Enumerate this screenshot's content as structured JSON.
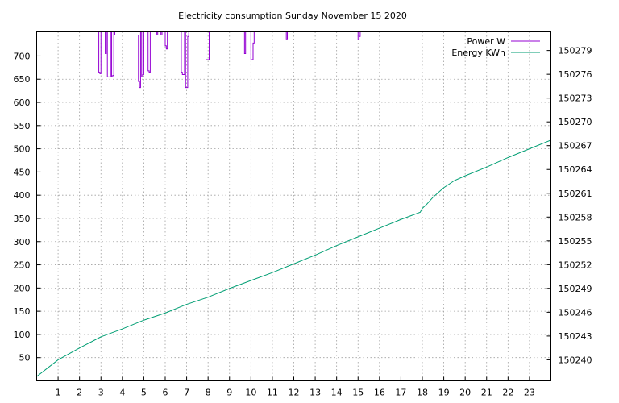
{
  "chart_data": {
    "type": "line",
    "title": "Electricity consumption Sunday November 15 2020",
    "xlabel": "",
    "ylabel": "",
    "y2label": "",
    "xlim": [
      0,
      24
    ],
    "ylim": [
      0,
      752
    ],
    "y2lim": [
      150237.35,
      150281.35
    ],
    "xticks": [
      1,
      2,
      3,
      4,
      5,
      6,
      7,
      8,
      9,
      10,
      11,
      12,
      13,
      14,
      15,
      16,
      17,
      18,
      19,
      20,
      21,
      22,
      23
    ],
    "yticks": [
      50,
      100,
      150,
      200,
      250,
      300,
      350,
      400,
      450,
      500,
      550,
      600,
      650,
      700
    ],
    "y2ticks": [
      150240,
      150243,
      150246,
      150249,
      150252,
      150255,
      150258,
      150261,
      150264,
      150267,
      150270,
      150273,
      150276,
      150279
    ],
    "grid": true,
    "legend_position": "top-right",
    "series": [
      {
        "name": "Power W",
        "axis": "y",
        "color": "#9400d3",
        "x": [
          2.9,
          2.9,
          2.95,
          2.95,
          3.0,
          3.0,
          3.2,
          3.2,
          3.25,
          3.25,
          3.3,
          3.3,
          3.45,
          3.45,
          3.5,
          3.5,
          3.55,
          3.55,
          3.6,
          3.6,
          3.65,
          3.65,
          4.75,
          4.75,
          4.8,
          4.8,
          4.85,
          4.85,
          4.9,
          4.9,
          4.95,
          4.95,
          5.0,
          5.0,
          5.2,
          5.2,
          5.25,
          5.25,
          5.3,
          5.3,
          5.6,
          5.6,
          5.65,
          5.65,
          5.8,
          5.8,
          5.85,
          5.85,
          6.0,
          6.0,
          6.05,
          6.05,
          6.1,
          6.1,
          6.15,
          6.15,
          6.75,
          6.75,
          6.8,
          6.8,
          6.9,
          6.9,
          6.95,
          6.95,
          7.05,
          7.05,
          7.1,
          7.1,
          7.15,
          7.15,
          7.9,
          7.9,
          8.0,
          8.0,
          8.05,
          8.05,
          9.7,
          9.7,
          9.75,
          9.75,
          10.0,
          10.0,
          10.1,
          10.1,
          10.15,
          10.15,
          10.2,
          10.2,
          11.65,
          11.65,
          11.7,
          11.7,
          15.0,
          15.0,
          15.05,
          15.05,
          15.1,
          15.1
        ],
        "values": [
          752,
          665,
          665,
          662,
          662,
          752,
          752,
          705,
          705,
          752,
          752,
          655,
          655,
          752,
          752,
          655,
          655,
          658,
          658,
          752,
          752,
          745,
          745,
          645,
          645,
          632,
          632,
          752,
          752,
          655,
          655,
          660,
          660,
          752,
          752,
          668,
          668,
          665,
          665,
          752,
          752,
          745,
          745,
          752,
          752,
          745,
          745,
          752,
          752,
          722,
          722,
          715,
          715,
          752,
          752,
          752,
          752,
          665,
          665,
          660,
          660,
          752,
          752,
          632,
          632,
          742,
          742,
          752,
          752,
          752,
          752,
          692,
          692,
          692,
          692,
          752,
          752,
          705,
          705,
          752,
          752,
          692,
          692,
          728,
          728,
          752,
          752,
          752,
          752,
          735,
          735,
          752,
          752,
          735,
          735,
          742,
          742,
          752
        ]
      },
      {
        "name": "Energy KWh",
        "axis": "y2",
        "color": "#009e73",
        "x": [
          0,
          1,
          2,
          3,
          4,
          5,
          6,
          7,
          8,
          9,
          10,
          11,
          12,
          13,
          14,
          15,
          16,
          17,
          17.9,
          18,
          18.2,
          18.5,
          19,
          19.5,
          20,
          21,
          22,
          23,
          24
        ],
        "values": [
          150237.9,
          150240.0,
          150241.5,
          150242.9,
          150243.9,
          150245.0,
          150245.9,
          150247.0,
          150247.9,
          150249.0,
          150250.0,
          150251.0,
          150252.1,
          150253.2,
          150254.4,
          150255.5,
          150256.6,
          150257.7,
          150258.6,
          150259.1,
          150259.6,
          150260.5,
          150261.7,
          150262.6,
          150263.2,
          150264.3,
          150265.5,
          150266.6,
          150267.7
        ]
      }
    ]
  }
}
